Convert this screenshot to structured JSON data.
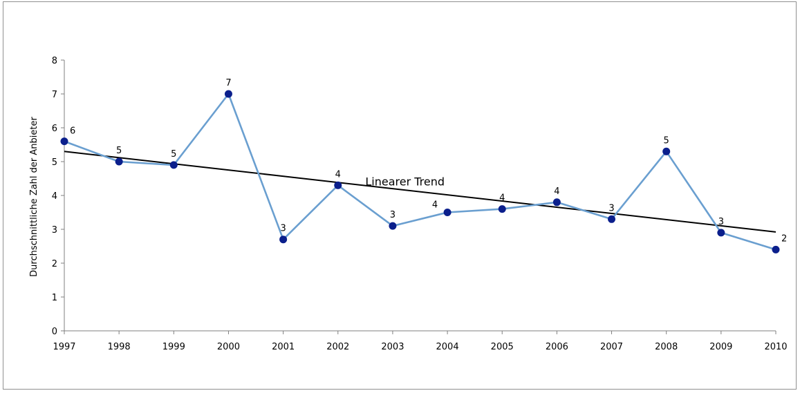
{
  "chart_data": {
    "type": "line",
    "ylabel": "Durchschnittliche Zahl der Anbieter",
    "xlabel": "",
    "ylim": [
      0,
      8
    ],
    "yticks": [
      0,
      1,
      2,
      3,
      4,
      5,
      6,
      7,
      8
    ],
    "categories": [
      "1997",
      "1998",
      "1999",
      "2000",
      "2001",
      "2002",
      "2003",
      "2004",
      "2005",
      "2006",
      "2007",
      "2008",
      "2009",
      "2010"
    ],
    "series": [
      {
        "values": [
          5.6,
          5.0,
          4.9,
          7.0,
          2.7,
          4.3,
          3.1,
          3.5,
          3.6,
          3.8,
          3.3,
          5.3,
          2.9,
          2.4
        ],
        "data_labels": [
          "6",
          "5",
          "5",
          "7",
          "3",
          "4",
          "3",
          "4",
          "4",
          "4",
          "3",
          "5",
          "3",
          "2"
        ],
        "color": "#6a9fd0",
        "marker_color": "#0b1f8c"
      }
    ],
    "trend": {
      "label": "Linearer Trend",
      "start": 5.3,
      "end": 2.92,
      "color": "#000000"
    },
    "grid": false,
    "legend": "none"
  }
}
